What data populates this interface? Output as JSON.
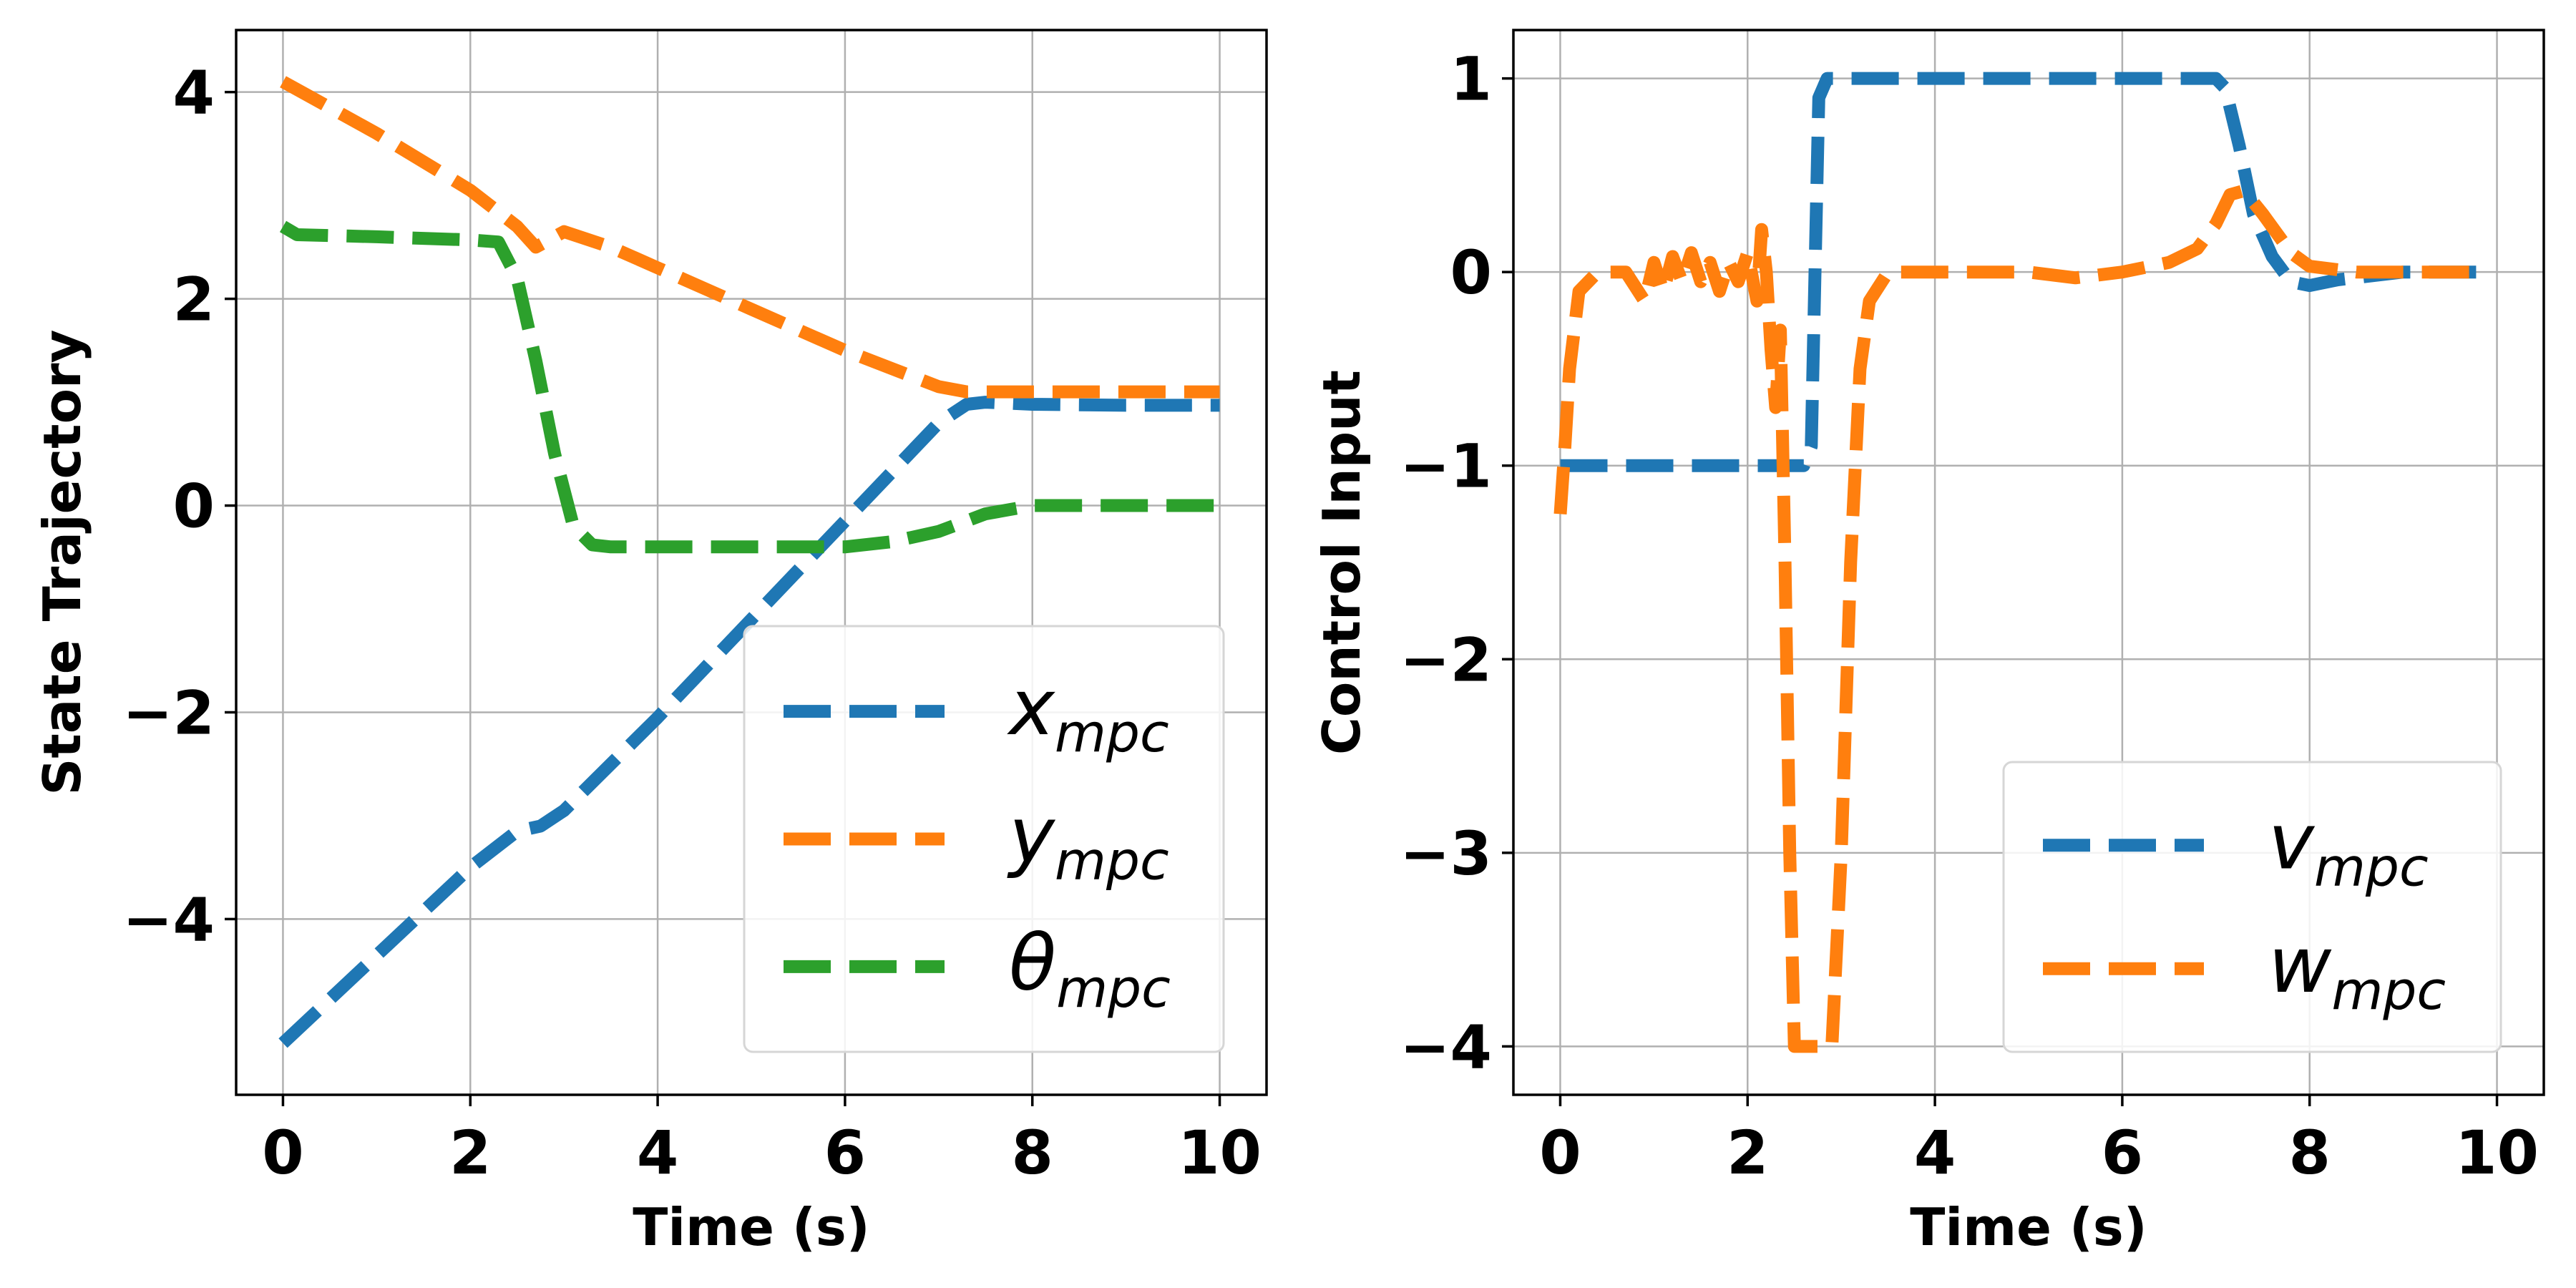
{
  "chart_data": [
    {
      "type": "line",
      "xlabel": "Time (s)",
      "ylabel": "State Trajectory",
      "xlim": [
        -0.5,
        10.5
      ],
      "ylim": [
        -5.7,
        4.6
      ],
      "xticks": [
        0,
        2,
        4,
        6,
        8,
        10
      ],
      "yticks": [
        -4,
        -2,
        0,
        2,
        4
      ],
      "xtick_labels": [
        "0",
        "2",
        "4",
        "6",
        "8",
        "10"
      ],
      "ytick_labels": [
        "−4",
        "−2",
        "0",
        "2",
        "4"
      ],
      "grid": true,
      "legend_position": "lower-right",
      "series": [
        {
          "name": "x",
          "subscript": "mpc",
          "color": "#1f77b4",
          "x": [
            0,
            1,
            2,
            2.5,
            2.75,
            3,
            4,
            5,
            6,
            7,
            7.3,
            7.5,
            8,
            9,
            10
          ],
          "y": [
            -5.2,
            -4.35,
            -3.5,
            -3.15,
            -3.1,
            -2.95,
            -2.05,
            -1.1,
            -0.15,
            0.8,
            0.98,
            1.0,
            0.98,
            0.97,
            0.97
          ]
        },
        {
          "name": "y",
          "subscript": "mpc",
          "color": "#ff7f0e",
          "x": [
            0,
            1,
            2,
            2.5,
            2.7,
            3,
            3.5,
            4,
            5,
            6,
            7,
            7.3,
            8,
            9,
            10
          ],
          "y": [
            4.1,
            3.6,
            3.05,
            2.7,
            2.5,
            2.65,
            2.5,
            2.3,
            1.9,
            1.5,
            1.15,
            1.1,
            1.1,
            1.1,
            1.1
          ]
        },
        {
          "name": "θ",
          "subscript": "mpc",
          "color": "#2ca02c",
          "x": [
            0,
            0.15,
            1,
            2,
            2.3,
            2.5,
            2.7,
            2.9,
            3.1,
            3.3,
            3.5,
            4,
            5,
            6,
            6.5,
            7,
            7.5,
            8,
            9,
            10
          ],
          "y": [
            2.7,
            2.62,
            2.6,
            2.57,
            2.55,
            2.2,
            1.4,
            0.5,
            -0.2,
            -0.38,
            -0.4,
            -0.4,
            -0.4,
            -0.4,
            -0.35,
            -0.25,
            -0.08,
            0.0,
            0.0,
            0.0
          ]
        }
      ]
    },
    {
      "type": "line",
      "xlabel": "Time (s)",
      "ylabel": "Control Input",
      "xlim": [
        -0.5,
        10.5
      ],
      "ylim": [
        -4.25,
        1.25
      ],
      "xticks": [
        0,
        2,
        4,
        6,
        8,
        10
      ],
      "yticks": [
        -4,
        -3,
        -2,
        -1,
        0,
        1
      ],
      "xtick_labels": [
        "0",
        "2",
        "4",
        "6",
        "8",
        "10"
      ],
      "ytick_labels": [
        "−4",
        "−3",
        "−2",
        "−1",
        "0",
        "1"
      ],
      "grid": true,
      "legend_position": "lower-right",
      "series": [
        {
          "name": "v",
          "subscript": "mpc",
          "color": "#1f77b4",
          "x": [
            0,
            1,
            2,
            2.6,
            2.68,
            2.72,
            2.76,
            2.85,
            4,
            5,
            6,
            7,
            7.1,
            7.25,
            7.4,
            7.6,
            7.8,
            8,
            8.3,
            9,
            9.9
          ],
          "y": [
            -1.0,
            -1.0,
            -1.0,
            -1.0,
            -0.9,
            0.0,
            0.9,
            1.0,
            1.0,
            1.0,
            1.0,
            1.0,
            0.95,
            0.65,
            0.3,
            0.08,
            -0.05,
            -0.07,
            -0.04,
            0.0,
            0.0
          ]
        },
        {
          "name": "w",
          "subscript": "mpc",
          "color": "#ff7f0e",
          "x": [
            0,
            0.05,
            0.1,
            0.2,
            0.4,
            0.7,
            0.9,
            1.0,
            1.1,
            1.2,
            1.3,
            1.4,
            1.5,
            1.6,
            1.7,
            1.8,
            1.9,
            2.0,
            2.1,
            2.15,
            2.2,
            2.25,
            2.3,
            2.35,
            2.4,
            2.45,
            2.5,
            2.6,
            2.8,
            2.9,
            3.0,
            3.1,
            3.2,
            3.3,
            3.5,
            3.8,
            4,
            5,
            5.5,
            6,
            6.5,
            6.8,
            7.0,
            7.15,
            7.3,
            7.5,
            7.8,
            8,
            8.5,
            9,
            9.9
          ],
          "y": [
            -1.25,
            -0.9,
            -0.5,
            -0.1,
            0.0,
            0.0,
            -0.15,
            0.05,
            -0.1,
            0.08,
            -0.05,
            0.1,
            -0.05,
            0.05,
            -0.1,
            0.05,
            -0.05,
            0.1,
            -0.15,
            0.22,
            0.0,
            -0.4,
            -0.7,
            -0.3,
            -1.5,
            -3.0,
            -4.0,
            -4.0,
            -4.0,
            -4.0,
            -3.0,
            -1.5,
            -0.5,
            -0.15,
            0.0,
            0.0,
            0.0,
            0.0,
            -0.03,
            0.0,
            0.05,
            0.12,
            0.25,
            0.4,
            0.42,
            0.3,
            0.1,
            0.03,
            0.0,
            0.0,
            0.0
          ]
        }
      ]
    }
  ]
}
